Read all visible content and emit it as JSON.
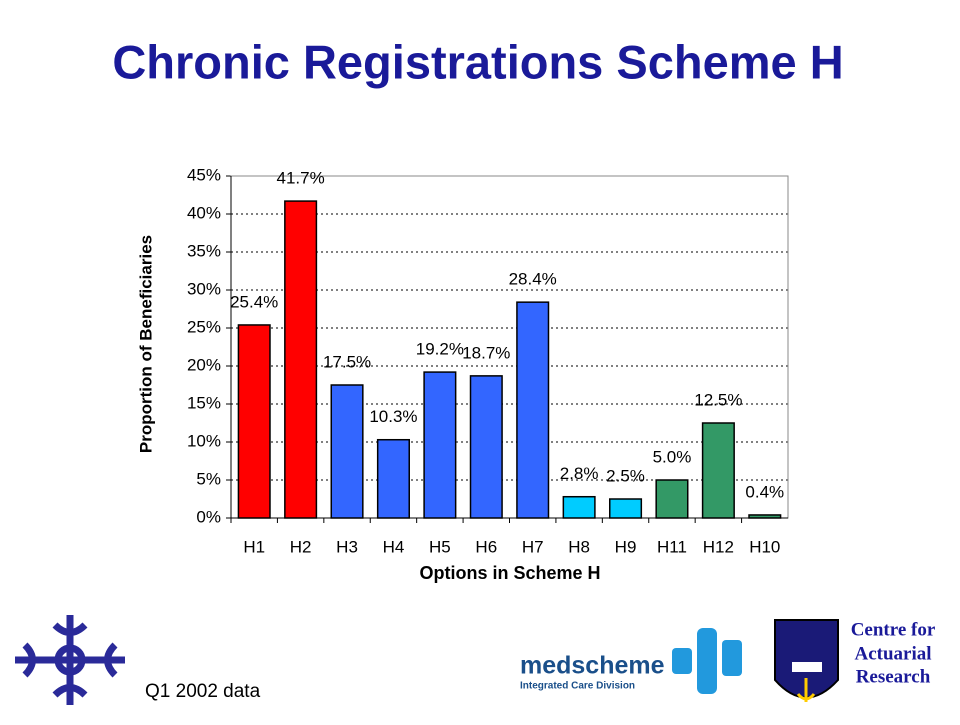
{
  "title": "Chronic Registrations Scheme H",
  "chart_data": {
    "type": "bar",
    "categories": [
      "H1",
      "H2",
      "H3",
      "H4",
      "H5",
      "H6",
      "H7",
      "H8",
      "H9",
      "H11",
      "H12",
      "H10"
    ],
    "values": [
      25.4,
      41.7,
      17.5,
      10.3,
      19.2,
      18.7,
      28.4,
      2.8,
      2.5,
      5.0,
      12.5,
      0.4
    ],
    "value_labels": [
      "25.4%",
      "41.7%",
      "17.5%",
      "10.3%",
      "19.2%",
      "18.7%",
      "28.4%",
      "2.8%",
      "2.5%",
      "5.0%",
      "12.5%",
      "0.4%"
    ],
    "colors": [
      "#ff0000",
      "#ff0000",
      "#3366ff",
      "#3366ff",
      "#3366ff",
      "#3366ff",
      "#3366ff",
      "#00ccff",
      "#00ccff",
      "#339966",
      "#339966",
      "#339966"
    ],
    "ylim": [
      0,
      45
    ],
    "yticks": [
      {
        "value": 0,
        "label": "0%"
      },
      {
        "value": 5,
        "label": "5%"
      },
      {
        "value": 10,
        "label": "10%"
      },
      {
        "value": 15,
        "label": "15%"
      },
      {
        "value": 20,
        "label": "20%"
      },
      {
        "value": 25,
        "label": "25%"
      },
      {
        "value": 30,
        "label": "30%"
      },
      {
        "value": 35,
        "label": "35%"
      },
      {
        "value": 40,
        "label": "40%"
      },
      {
        "value": 45,
        "label": "45%"
      }
    ],
    "ylabel": "Proportion of Beneficiaries",
    "xlabel": "Options in Scheme H",
    "grid": true
  },
  "footer": {
    "note": "Q1 2002 data",
    "medscheme": "medscheme",
    "division": "Integrated Care Division",
    "centre": [
      "Centre for",
      "Actuarial",
      "Research"
    ]
  }
}
